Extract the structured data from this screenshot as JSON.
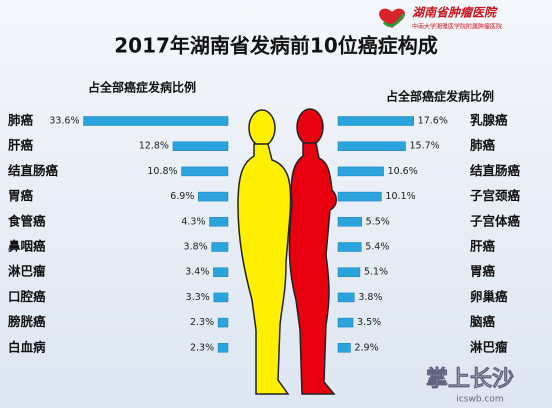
{
  "logo": {
    "name": "湖南省肿瘤医院",
    "subname": "中南大学湘雅医学院附属肿瘤医院"
  },
  "title": "2017年湖南省发病前10位癌症构成",
  "chart_data": [
    {
      "type": "bar",
      "subtitle": "占全部癌症发病比例",
      "color": "#2ba3dd",
      "categories": [
        "肺癌",
        "肝癌",
        "结直肠癌",
        "胃癌",
        "食管癌",
        "鼻咽癌",
        "淋巴瘤",
        "口腔癌",
        "膀胱癌",
        "白血病"
      ],
      "values": [
        33.6,
        12.8,
        10.8,
        6.9,
        4.3,
        3.8,
        3.4,
        3.3,
        2.3,
        2.3
      ],
      "value_labels": [
        "33.6%",
        "12.8%",
        "10.8%",
        "6.9%",
        "4.3%",
        "3.8%",
        "3.4%",
        "3.3%",
        "2.3%",
        "2.3%"
      ]
    },
    {
      "type": "bar",
      "subtitle": "占全部癌症发病比例",
      "color": "#2ba3dd",
      "categories": [
        "乳腺癌",
        "肺癌",
        "结直肠癌",
        "子宫颈癌",
        "子宫体癌",
        "肝癌",
        "胃癌",
        "卵巢癌",
        "脑癌",
        "淋巴瘤"
      ],
      "values": [
        17.6,
        15.7,
        10.6,
        10.1,
        5.5,
        5.4,
        5.1,
        3.8,
        3.5,
        2.9
      ],
      "value_labels": [
        "17.6%",
        "15.7%",
        "10.6%",
        "10.1%",
        "5.5%",
        "5.4%",
        "5.1%",
        "3.8%",
        "3.5%",
        "2.9%"
      ]
    }
  ],
  "watermark": {
    "name": "掌上长沙",
    "url": "icswb.com"
  }
}
